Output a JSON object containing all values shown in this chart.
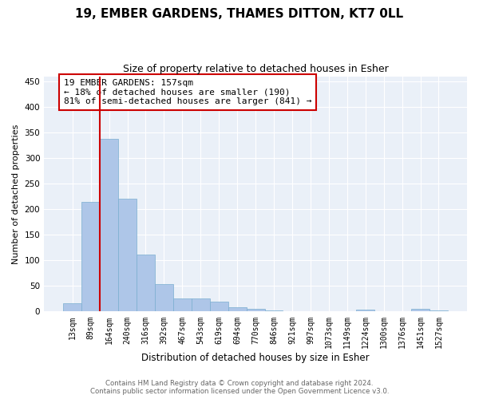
{
  "title": "19, EMBER GARDENS, THAMES DITTON, KT7 0LL",
  "subtitle": "Size of property relative to detached houses in Esher",
  "xlabel": "Distribution of detached houses by size in Esher",
  "ylabel": "Number of detached properties",
  "categories": [
    "13sqm",
    "89sqm",
    "164sqm",
    "240sqm",
    "316sqm",
    "392sqm",
    "467sqm",
    "543sqm",
    "619sqm",
    "694sqm",
    "770sqm",
    "846sqm",
    "921sqm",
    "997sqm",
    "1073sqm",
    "1149sqm",
    "1224sqm",
    "1300sqm",
    "1376sqm",
    "1451sqm",
    "1527sqm"
  ],
  "values": [
    17,
    215,
    338,
    220,
    112,
    53,
    25,
    25,
    20,
    9,
    6,
    3,
    1,
    1,
    1,
    0,
    4,
    0,
    0,
    5,
    3
  ],
  "bar_color": "#aec6e8",
  "bar_edge_color": "#7aaed0",
  "vline_x_index": 2,
  "vline_color": "#cc0000",
  "annotation_text": "19 EMBER GARDENS: 157sqm\n← 18% of detached houses are smaller (190)\n81% of semi-detached houses are larger (841) →",
  "annotation_box_color": "#ffffff",
  "annotation_box_edge_color": "#cc0000",
  "ylim": [
    0,
    460
  ],
  "yticks": [
    0,
    50,
    100,
    150,
    200,
    250,
    300,
    350,
    400,
    450
  ],
  "background_color": "#eaf0f8",
  "footer_line1": "Contains HM Land Registry data © Crown copyright and database right 2024.",
  "footer_line2": "Contains public sector information licensed under the Open Government Licence v3.0.",
  "title_fontsize": 11,
  "subtitle_fontsize": 9,
  "tick_fontsize": 7,
  "ylabel_fontsize": 8,
  "xlabel_fontsize": 8.5,
  "annotation_fontsize": 8
}
